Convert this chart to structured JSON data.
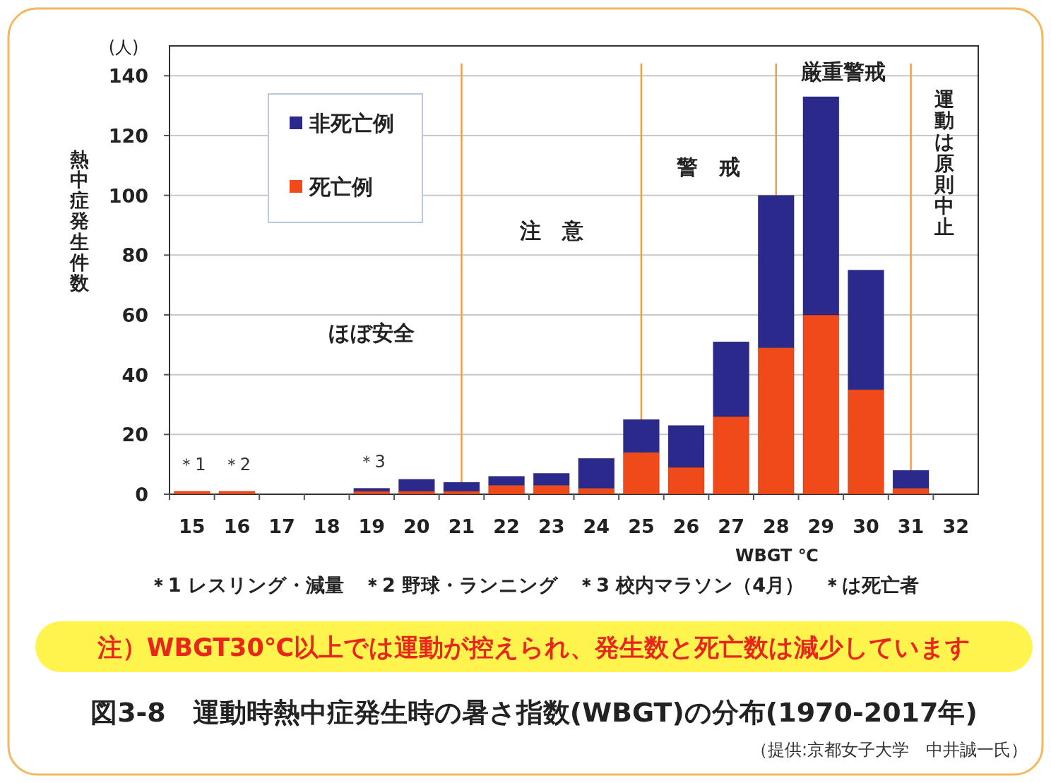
{
  "chart_data": {
    "type": "bar",
    "stacked": true,
    "title": "図3-8　運動時熱中症発生時の暑さ指数(WBGT)の分布(1970-2017年)",
    "xlabel": "WBGT ℃",
    "ylabel": "熱中症発生件数",
    "categories": [
      "15",
      "16",
      "17",
      "18",
      "19",
      "20",
      "21",
      "22",
      "23",
      "24",
      "25",
      "26",
      "27",
      "28",
      "29",
      "30",
      "31",
      "32"
    ],
    "series": [
      {
        "name": "死亡例",
        "color": "#f04a1a",
        "values": [
          1,
          1,
          null,
          null,
          1,
          1,
          1,
          3,
          3,
          2,
          14,
          9,
          26,
          49,
          60,
          35,
          2,
          null
        ]
      },
      {
        "name": "非死亡例",
        "color": "#2b2a8c",
        "values": [
          null,
          null,
          null,
          null,
          1,
          4,
          3,
          3,
          4,
          10,
          11,
          14,
          25,
          51,
          73,
          40,
          6,
          null
        ]
      }
    ],
    "ylim": [
      0,
      150
    ],
    "yticks": [
      0,
      20,
      40,
      60,
      80,
      100,
      120,
      140
    ],
    "grid": "y",
    "legend": "top left",
    "ref_lines": [
      {
        "axis": "x",
        "value": "21",
        "label": "注　意",
        "color": "#f39c4a"
      },
      {
        "axis": "x",
        "value": "25",
        "label": "警　戒",
        "color": "#f39c4a"
      },
      {
        "axis": "x",
        "value": "28",
        "label": "厳重警戒",
        "color": "#f39c4a"
      },
      {
        "axis": "x",
        "value": "31",
        "label": "運動は原則中止",
        "color": "#f39c4a"
      }
    ],
    "annotations": [
      "(人)",
      "ほぼ安全",
      {
        "text": "＊1",
        "x": "15",
        "y": 1
      },
      {
        "text": "＊2",
        "x": "16",
        "y": 1
      },
      {
        "text": "＊3",
        "x": "19",
        "y": 2
      },
      "＊1 レスリング・減量　＊2 野球・ランニング　＊3 校内マラソン（4月）　＊は死亡者",
      "注）WBGT30℃以上では運動が控えられ、発生数と死亡数は減少しています",
      "（提供:京都女子大学　中井誠一氏）"
    ]
  }
}
